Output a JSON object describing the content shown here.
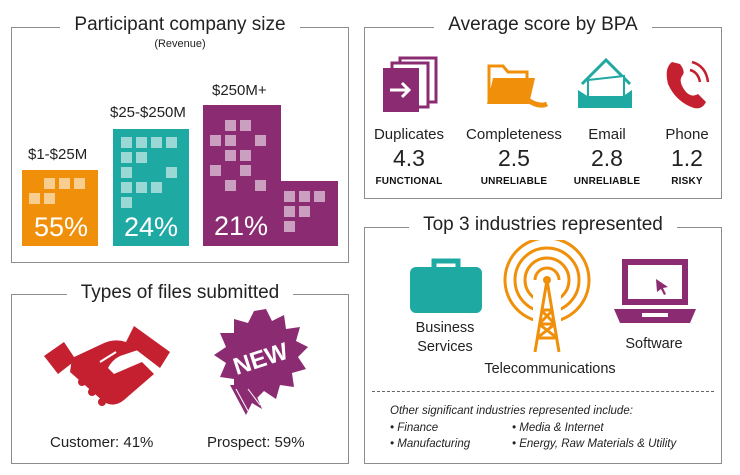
{
  "company_size": {
    "title": "Participant company size",
    "subtitle": "(Revenue)",
    "segments": [
      {
        "label": "$1-$25M",
        "percent": "55%",
        "color": "#f0900a"
      },
      {
        "label": "$25-$250M",
        "percent": "24%",
        "color": "#1fa9a3"
      },
      {
        "label": "$250M+",
        "percent": "21%",
        "color": "#8b2c72"
      }
    ]
  },
  "bpa": {
    "title": "Average score by BPA",
    "items": [
      {
        "name": "Duplicates",
        "score": "4.3",
        "rating": "FUNCTIONAL",
        "icon": "duplicates-icon",
        "color": "#8b2c72"
      },
      {
        "name": "Completeness",
        "score": "2.5",
        "rating": "UNRELIABLE",
        "icon": "folder-icon",
        "color": "#f0900a"
      },
      {
        "name": "Email",
        "score": "2.8",
        "rating": "UNRELIABLE",
        "icon": "envelope-icon",
        "color": "#1fa9a3"
      },
      {
        "name": "Phone",
        "score": "1.2",
        "rating": "RISKY",
        "icon": "phone-icon",
        "color": "#c4202f"
      }
    ]
  },
  "file_types": {
    "title": "Types of files submitted",
    "customer_label": "Customer: 41%",
    "prospect_label": "Prospect: 59%",
    "badge_text": "NEW",
    "customer_color": "#c4202f",
    "prospect_color": "#8b2c72"
  },
  "industries": {
    "title": "Top 3 industries represented",
    "business_line1": "Business",
    "business_line2": "Services",
    "telecom": "Telecommunications",
    "software": "Software",
    "other_heading": "Other significant industries represented include:",
    "other_left": [
      "Finance",
      "Manufacturing"
    ],
    "other_right": [
      "Media & Internet",
      "Energy, Raw Materials & Utility"
    ]
  }
}
